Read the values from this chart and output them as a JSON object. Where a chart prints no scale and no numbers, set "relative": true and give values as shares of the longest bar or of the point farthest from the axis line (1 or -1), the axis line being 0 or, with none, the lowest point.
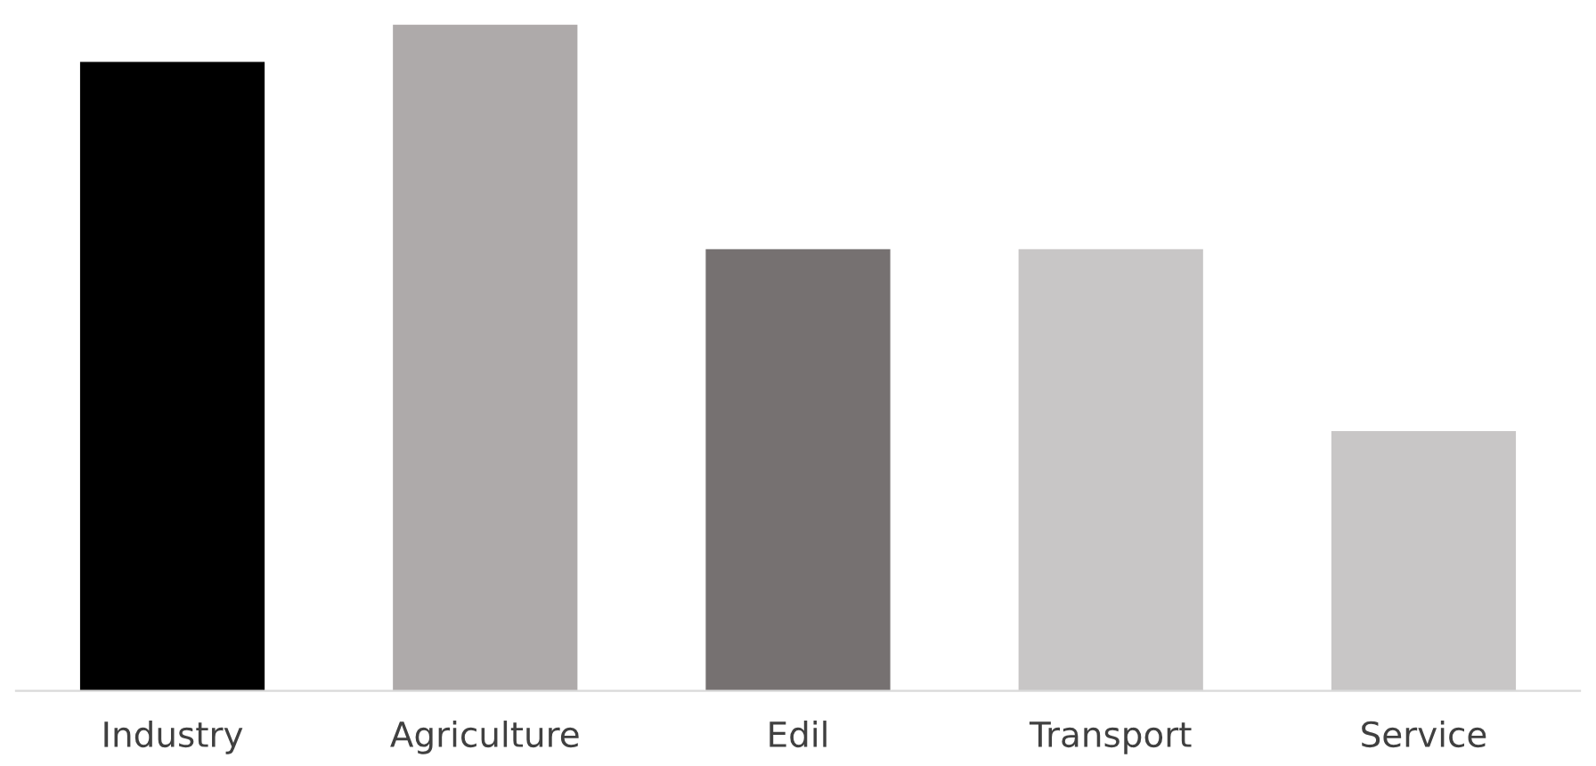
{
  "chart_data": {
    "type": "bar",
    "relative": true,
    "categories": [
      "Industry",
      "Agriculture",
      "Edil",
      "Transport",
      "Service"
    ],
    "values": [
      0.944,
      1,
      0.663,
      0.663,
      0.39
    ],
    "colors": [
      "#000000",
      "#aeaaaa",
      "#767171",
      "#c8c6c6",
      "#c8c6c6"
    ],
    "grid": false,
    "legend": false
  }
}
